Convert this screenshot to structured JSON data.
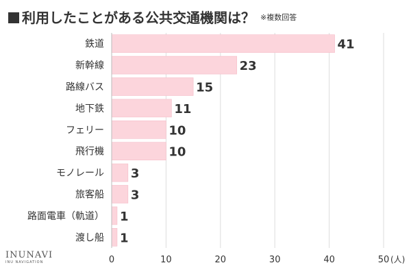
{
  "title": {
    "text": "利用したことがある公共交通機関は？",
    "note": "※複数回答"
  },
  "logo": {
    "brand": "INUNAVI",
    "sub": "INU NAVIGATION"
  },
  "colors": {
    "bar": "#fcd5dc",
    "bar_stroke": "#f5bcc7",
    "text": "#333333",
    "grid": "#dddddd"
  },
  "chart_data": {
    "type": "bar",
    "orientation": "horizontal",
    "title": "利用したことがある公共交通機関は？",
    "categories": [
      "鉄道",
      "新幹線",
      "路線バス",
      "地下鉄",
      "フェリー",
      "飛行機",
      "モノレール",
      "旅客船",
      "路面電車（軌道）",
      "渡し船"
    ],
    "values": [
      41,
      23,
      15,
      11,
      10,
      10,
      3,
      3,
      1,
      1
    ],
    "xlim": [
      0,
      50
    ],
    "xticks": [
      0,
      10,
      20,
      30,
      40,
      50
    ],
    "xlabel": "(人)",
    "grid": true
  }
}
